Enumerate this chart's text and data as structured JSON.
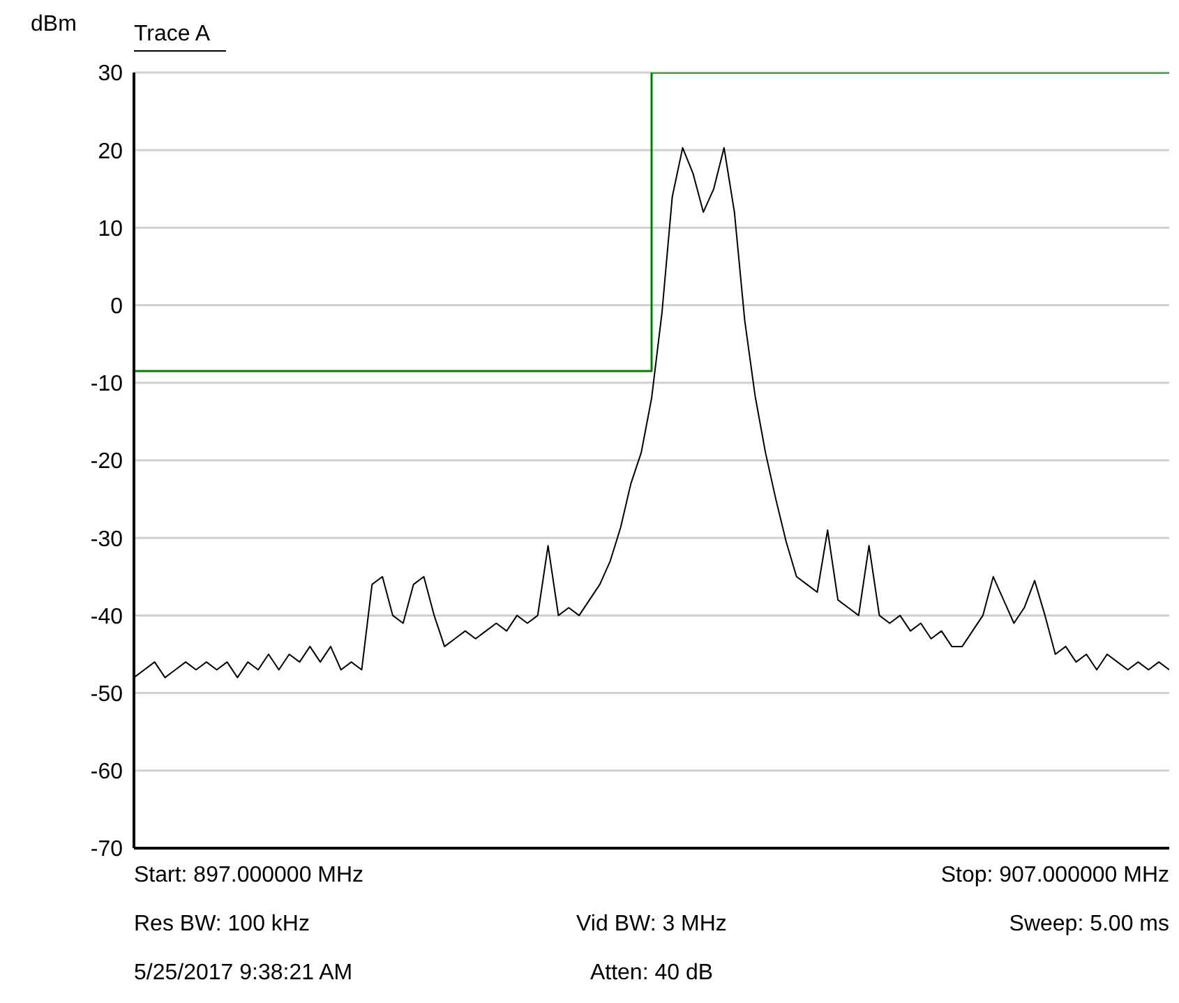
{
  "chart_data": {
    "type": "line",
    "title": "Trace A",
    "ylabel": "dBm",
    "categories": [
      null,
      null,
      null,
      null,
      null,
      null,
      null,
      null,
      null,
      null,
      null,
      null,
      null,
      null,
      null,
      null,
      null,
      null,
      null,
      null,
      null,
      null,
      null,
      null,
      null,
      null,
      null,
      null,
      null,
      null,
      null,
      null,
      null,
      null,
      null,
      null,
      null,
      null,
      null,
      null,
      null,
      null,
      null,
      null,
      null,
      null,
      null,
      null,
      null,
      null,
      null,
      null,
      null,
      null,
      null,
      null,
      null,
      null,
      null,
      null,
      null,
      null,
      null,
      null,
      null,
      null,
      null,
      null,
      null,
      null,
      null,
      null,
      null,
      null,
      null,
      null,
      null,
      null,
      null,
      null,
      null,
      null,
      null,
      null,
      null,
      null,
      null,
      null,
      null,
      null,
      null,
      null,
      null,
      null,
      null,
      null,
      null,
      null,
      null,
      null,
      null
    ],
    "ylim": [
      -70,
      30
    ],
    "yticks": [
      -70,
      -60,
      -50,
      -40,
      -30,
      -20,
      -10,
      0,
      10,
      20,
      30
    ],
    "tick_labels": "y",
    "grid": true,
    "legend": false,
    "marker": "none",
    "line_style": "solid",
    "series": [
      {
        "color": "#000000",
        "values": [
          -48,
          -47,
          -46,
          -48,
          -47,
          -46,
          -47,
          -46,
          -47,
          -46,
          -48,
          -46,
          -47,
          -45,
          -47,
          -45,
          -46,
          -44,
          -46,
          -44,
          -47,
          -46,
          -47,
          -36,
          -35,
          -40,
          -41,
          -36,
          -35,
          -40,
          -44,
          -43,
          -42,
          -43,
          -42,
          -41,
          -42,
          -40,
          -41,
          -40,
          -31,
          -40,
          -39,
          -40,
          -38,
          -36,
          -33,
          -28.7,
          -23,
          -19,
          -12,
          -1,
          14,
          20.3,
          17,
          12,
          15,
          20.3,
          12,
          -2,
          -11.7,
          -19,
          -25,
          -30.5,
          -35,
          -36,
          -37,
          -29,
          -38,
          -39,
          -40,
          -31,
          -40,
          -41,
          -40,
          -42,
          -41,
          -43,
          -42,
          -44,
          -44,
          -42,
          -40,
          -35,
          -38,
          -41,
          -39,
          -35.5,
          -40,
          -45,
          -44,
          -46,
          -45,
          -47,
          -45,
          -46,
          -47,
          -46,
          -47,
          -46,
          -47
        ]
      },
      {
        "type": "step",
        "color": "#008000",
        "values": [
          -8.5,
          -8.5,
          -8.5,
          -8.5,
          -8.5,
          -8.5,
          -8.5,
          -8.5,
          -8.5,
          -8.5,
          -8.5,
          -8.5,
          -8.5,
          -8.5,
          -8.5,
          -8.5,
          -8.5,
          -8.5,
          -8.5,
          -8.5,
          -8.5,
          -8.5,
          -8.5,
          -8.5,
          -8.5,
          -8.5,
          -8.5,
          -8.5,
          -8.5,
          -8.5,
          -8.5,
          -8.5,
          -8.5,
          -8.5,
          -8.5,
          -8.5,
          -8.5,
          -8.5,
          -8.5,
          -8.5,
          -8.5,
          -8.5,
          -8.5,
          -8.5,
          -8.5,
          -8.5,
          -8.5,
          -8.5,
          -8.5,
          -8.5,
          30,
          30,
          30,
          30,
          30,
          30,
          30,
          30,
          30,
          30,
          30,
          30,
          30,
          30,
          30,
          30,
          30,
          30,
          30,
          30,
          30,
          30,
          30,
          30,
          30,
          30,
          30,
          30,
          30,
          30,
          30,
          30,
          30,
          30,
          30,
          30,
          30,
          30,
          30,
          30,
          30,
          30,
          30,
          30,
          30,
          30,
          30,
          30,
          30,
          30,
          30
        ]
      }
    ],
    "annotations": [
      "Start: 897.000000 MHz",
      "Stop: 907.000000 MHz",
      "Res BW: 100 kHz",
      "Vid BW: 3 MHz",
      "Sweep: 5.00 ms",
      "5/25/2017 9:38:21 AM",
      "Atten: 40 dB"
    ]
  }
}
